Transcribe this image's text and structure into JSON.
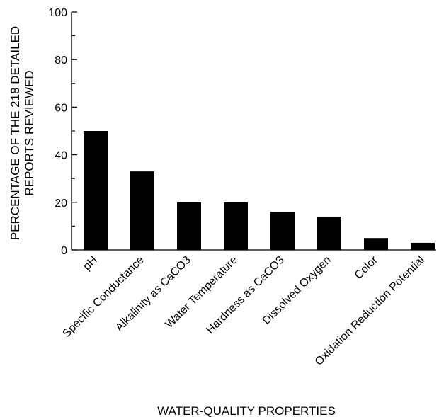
{
  "chart_data": {
    "type": "bar",
    "categories": [
      "pH",
      "Specific Conductance",
      "Alkalinity as CaCO3",
      "Water Temperature",
      "Hardness as CaCO3",
      "Dissolved Oxygen",
      "Color",
      "Oxidation Reduction Potential"
    ],
    "values": [
      50,
      33,
      20,
      20,
      16,
      14,
      5,
      3
    ],
    "xlabel": "WATER-QUALITY PROPERTIES",
    "ylabel": [
      "PERCENTAGE OF THE 218 DETAILED",
      "REPORTS REVIEWED"
    ],
    "ylim": [
      0,
      100
    ],
    "yticks": [
      0,
      20,
      40,
      60,
      80,
      100
    ],
    "ytick_labels": [
      "0",
      "20",
      "40",
      "60",
      "80",
      "100"
    ],
    "grid": false,
    "bar_color": "#000000"
  }
}
